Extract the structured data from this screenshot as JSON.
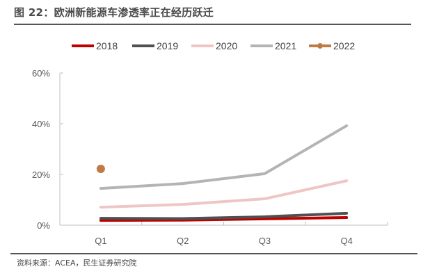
{
  "title": "图 22：欧洲新能源车渗透率正在经历跃迁",
  "source": "资料来源：ACEA，民生证券研究院",
  "chart_data": {
    "type": "line",
    "title": "图 22：欧洲新能源车渗透率正在经历跃迁",
    "xlabel": "",
    "ylabel": "",
    "categories": [
      "Q1",
      "Q2",
      "Q3",
      "Q4"
    ],
    "ylim": [
      0,
      60
    ],
    "yticks": [
      0,
      20,
      40,
      60
    ],
    "ytick_labels": [
      "0%",
      "20%",
      "40%",
      "60%"
    ],
    "grid": false,
    "legend_position": "top",
    "series": [
      {
        "name": "2018",
        "color": "#c00000",
        "values": [
          1.9,
          2.0,
          2.5,
          3.0
        ],
        "marker": false
      },
      {
        "name": "2019",
        "color": "#505050",
        "values": [
          2.7,
          2.6,
          3.3,
          4.7
        ],
        "marker": false
      },
      {
        "name": "2020",
        "color": "#efc6c6",
        "values": [
          7.1,
          8.2,
          10.4,
          17.5
        ],
        "marker": false
      },
      {
        "name": "2021",
        "color": "#b4b4b4",
        "values": [
          14.5,
          16.4,
          20.3,
          39.2
        ],
        "marker": false
      },
      {
        "name": "2022",
        "color": "#c07a45",
        "values": [
          22.2,
          null,
          null,
          null
        ],
        "marker": true
      }
    ]
  }
}
